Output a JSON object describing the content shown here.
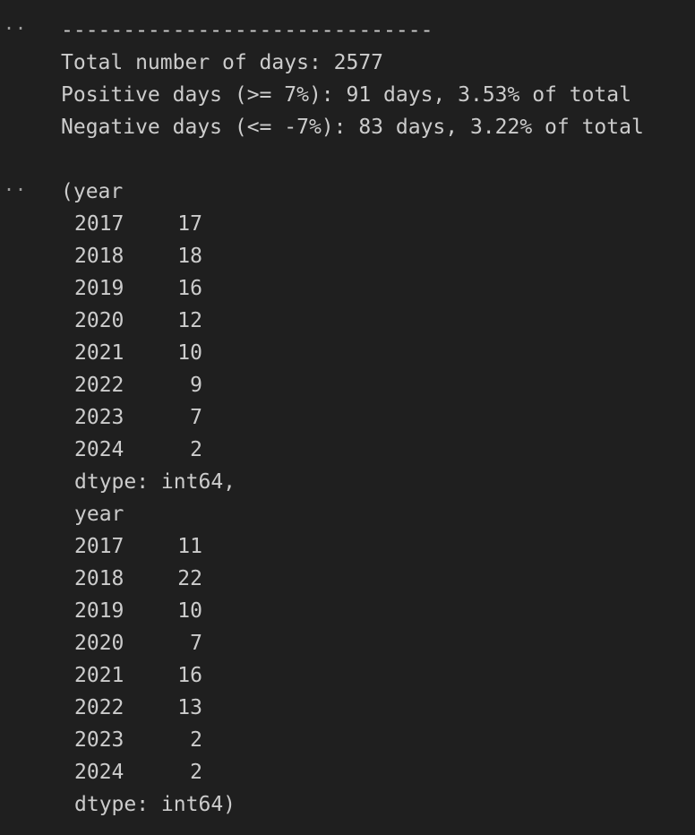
{
  "cell1": {
    "prompt": "..",
    "lines": [
      "------------------------------",
      "Total number of days: 2577",
      "Positive days (>= 7%): 91 days, 3.53% of total",
      "Negative days (<= -7%): 83 days, 3.22% of total"
    ]
  },
  "cell2": {
    "prompt": "..",
    "open_line": "(year",
    "series1": {
      "rows": [
        {
          "year": "2017",
          "count": "17"
        },
        {
          "year": "2018",
          "count": "18"
        },
        {
          "year": "2019",
          "count": "16"
        },
        {
          "year": "2020",
          "count": "12"
        },
        {
          "year": "2021",
          "count": "10"
        },
        {
          "year": "2022",
          "count": "9"
        },
        {
          "year": "2023",
          "count": "7"
        },
        {
          "year": "2024",
          "count": "2"
        }
      ],
      "dtype_line": "dtype: int64,"
    },
    "series2_header": "year",
    "series2": {
      "rows": [
        {
          "year": "2017",
          "count": "11"
        },
        {
          "year": "2018",
          "count": "22"
        },
        {
          "year": "2019",
          "count": "10"
        },
        {
          "year": "2020",
          "count": "7"
        },
        {
          "year": "2021",
          "count": "16"
        },
        {
          "year": "2022",
          "count": "13"
        },
        {
          "year": "2023",
          "count": "2"
        },
        {
          "year": "2024",
          "count": "2"
        }
      ],
      "dtype_line": "dtype: int64)"
    }
  }
}
